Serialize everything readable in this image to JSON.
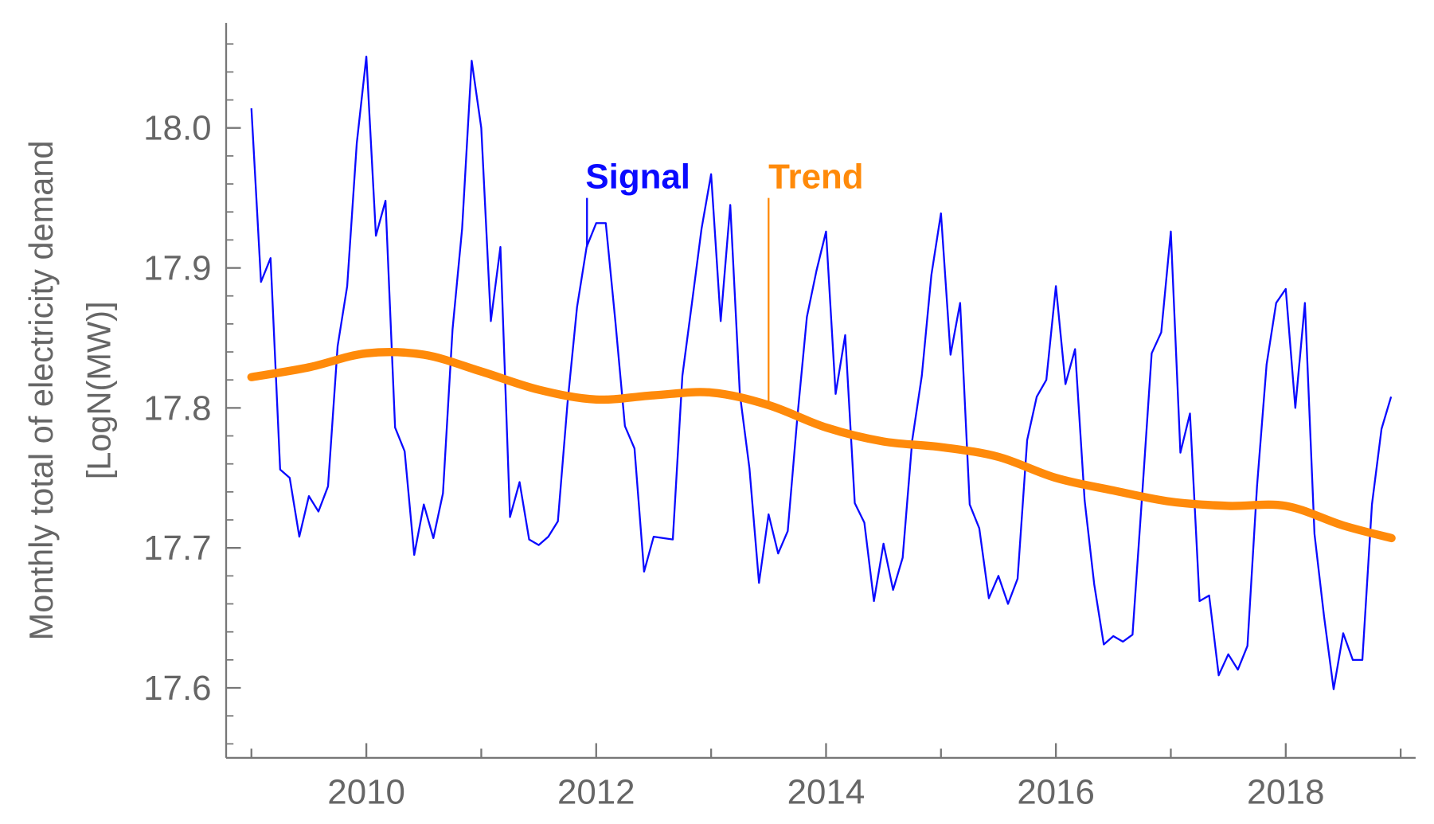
{
  "chart_data": {
    "type": "line",
    "title": "",
    "xlabel": "",
    "ylabel_line1": "Monthly total of electricity demand",
    "ylabel_line2": "[LogN(MW)]",
    "xlim": [
      2008.78,
      2019.13
    ],
    "ylim": [
      17.55,
      18.075
    ],
    "x_ticks": [
      2010,
      2012,
      2014,
      2016,
      2018
    ],
    "x_tick_labels": [
      "2010",
      "2012",
      "2014",
      "2016",
      "2018"
    ],
    "y_ticks": [
      17.6,
      17.7,
      17.8,
      17.9,
      18.0
    ],
    "y_tick_labels": [
      "17.6",
      "17.7",
      "17.8",
      "17.9",
      "18.0"
    ],
    "grid": false,
    "colors": {
      "signal": "#0a0aff",
      "trend": "#ff8a0a",
      "axis": "#777777",
      "label": "#666666"
    },
    "annotations": [
      {
        "text": "Signal",
        "x": 2011.92,
        "y": 17.95,
        "series": "signal"
      },
      {
        "text": "Trend",
        "x": 2013.5,
        "y": 17.95,
        "series": "trend"
      }
    ],
    "series": [
      {
        "name": "Signal",
        "x_start": "2009-01",
        "frequency": "monthly",
        "values": [
          18.014,
          17.89,
          17.907,
          17.756,
          17.75,
          17.708,
          17.737,
          17.726,
          17.744,
          17.844,
          17.887,
          17.989,
          18.051,
          17.923,
          17.948,
          17.786,
          17.769,
          17.695,
          17.731,
          17.707,
          17.739,
          17.856,
          17.928,
          18.048,
          18.0,
          17.862,
          17.915,
          17.722,
          17.747,
          17.706,
          17.702,
          17.708,
          17.719,
          17.803,
          17.872,
          17.915,
          17.932,
          17.932,
          17.862,
          17.787,
          17.771,
          17.683,
          17.708,
          17.707,
          17.706,
          17.823,
          17.875,
          17.928,
          17.967,
          17.862,
          17.945,
          17.81,
          17.757,
          17.675,
          17.724,
          17.696,
          17.712,
          17.793,
          17.865,
          17.898,
          17.926,
          17.81,
          17.852,
          17.732,
          17.718,
          17.662,
          17.703,
          17.67,
          17.693,
          17.777,
          17.823,
          17.895,
          17.939,
          17.838,
          17.875,
          17.731,
          17.714,
          17.664,
          17.68,
          17.66,
          17.678,
          17.777,
          17.808,
          17.82,
          17.887,
          17.817,
          17.842,
          17.734,
          17.674,
          17.631,
          17.637,
          17.633,
          17.638,
          17.737,
          17.839,
          17.854,
          17.926,
          17.768,
          17.796,
          17.662,
          17.666,
          17.609,
          17.624,
          17.613,
          17.63,
          17.744,
          17.831,
          17.875,
          17.885,
          17.8,
          17.875,
          17.71,
          17.651,
          17.599,
          17.639,
          17.62,
          17.62,
          17.731,
          17.785,
          17.808
        ]
      },
      {
        "name": "Trend",
        "x": [
          2009.0,
          2009.5,
          2010.0,
          2010.5,
          2011.0,
          2011.5,
          2012.0,
          2012.5,
          2013.0,
          2013.5,
          2014.0,
          2014.5,
          2015.0,
          2015.5,
          2016.0,
          2016.5,
          2017.0,
          2017.5,
          2018.0,
          2018.5,
          2018.92
        ],
        "values": [
          17.822,
          17.829,
          17.839,
          17.838,
          17.826,
          17.813,
          17.806,
          17.809,
          17.811,
          17.802,
          17.786,
          17.776,
          17.772,
          17.765,
          17.75,
          17.741,
          17.733,
          17.73,
          17.73,
          17.716,
          17.707
        ]
      }
    ]
  }
}
